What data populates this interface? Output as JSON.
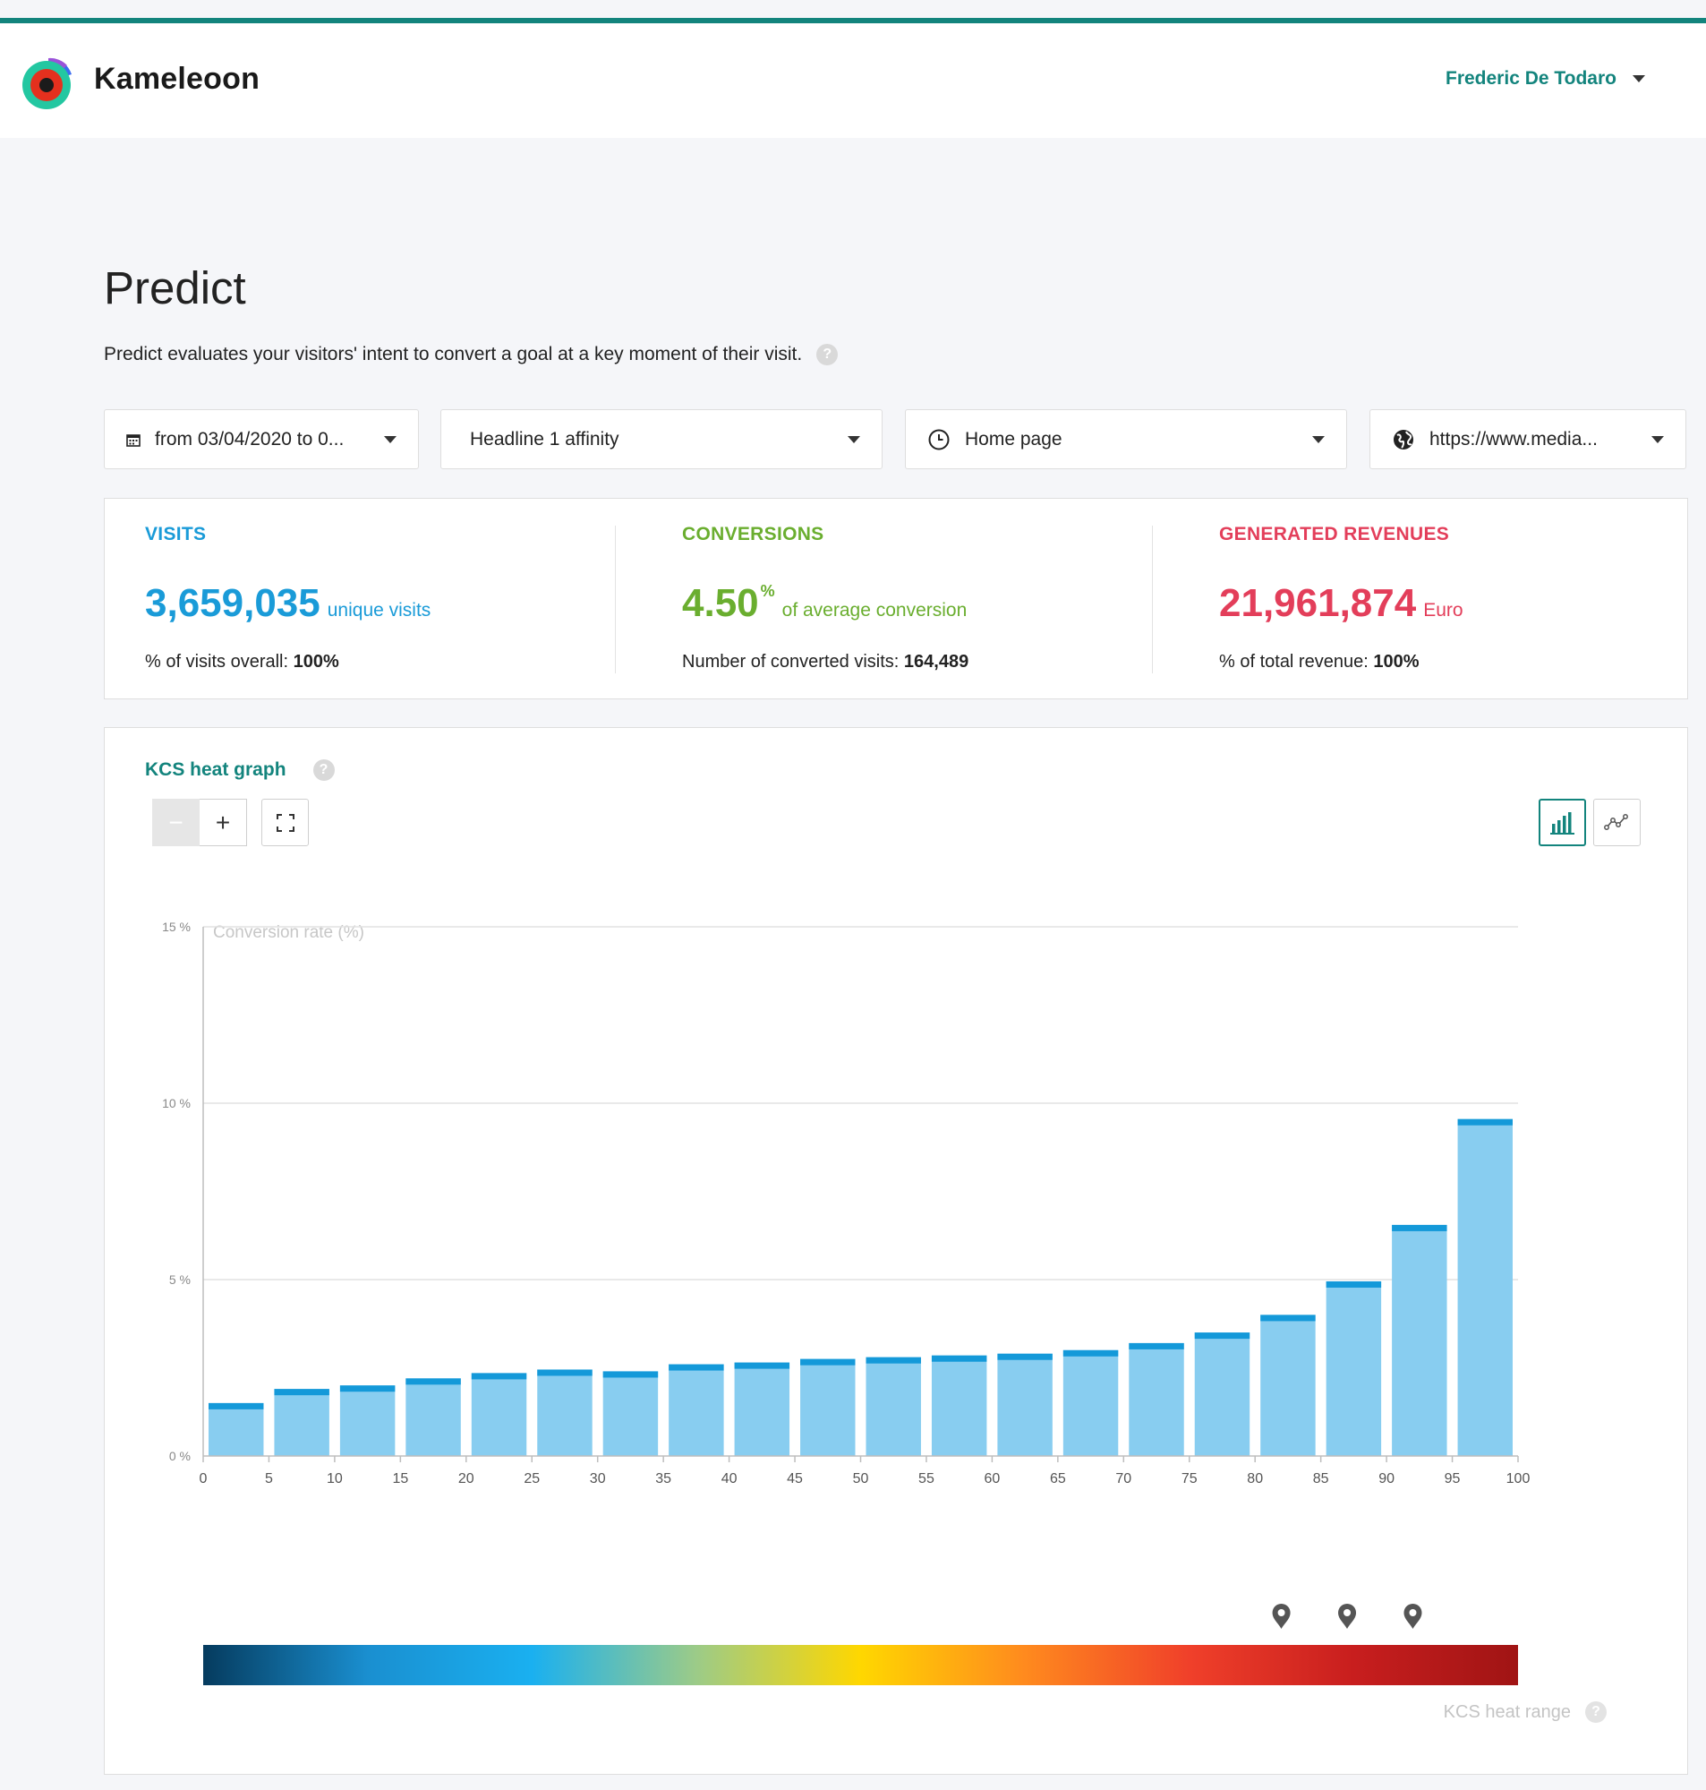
{
  "header": {
    "brand": "Kameleoon",
    "user_name": "Frederic De Todaro"
  },
  "page": {
    "title": "Predict",
    "description": "Predict evaluates your visitors' intent to convert a goal at a key moment of their visit."
  },
  "filters": {
    "date_range": "from 03/04/2020 to 0...",
    "goal": "Headline 1 affinity",
    "key_moment": "Home page",
    "site_url": "https://www.media..."
  },
  "kpis": {
    "visits": {
      "label": "VISITS",
      "value": "3,659,035",
      "unit": "unique visits",
      "sub_label": "% of visits overall:",
      "sub_value": "100%",
      "color": "#1a9bd8"
    },
    "conversions": {
      "label": "CONVERSIONS",
      "value": "4.50",
      "sup": "%",
      "unit": "of average conversion",
      "sub_label": "Number of converted visits:",
      "sub_value": "164,489",
      "color": "#6aae2f"
    },
    "revenues": {
      "label": "GENERATED REVENUES",
      "value": "21,961,874",
      "unit": "Euro",
      "sub_label": "% of total revenue:",
      "sub_value": "100%",
      "color": "#e33e5a"
    }
  },
  "chart_panel": {
    "title": "KCS heat graph",
    "zoom_out": "−",
    "zoom_in": "+",
    "heat_range_label": "KCS heat range",
    "icons": [
      "minus-icon",
      "plus-icon",
      "fit-screen-icon",
      "bar-chart-icon",
      "line-chart-icon",
      "help-icon",
      "map-pin-icon"
    ]
  },
  "chart_data": {
    "type": "bar",
    "title": "",
    "ylabel": "Conversion rate (%)",
    "xlabel": "",
    "ylim": [
      0,
      15
    ],
    "yticks": [
      "0 %",
      "5 %",
      "10 %",
      "15 %"
    ],
    "ytick_values": [
      0,
      5,
      10,
      15
    ],
    "xlim": [
      0,
      100
    ],
    "xticks": [
      0,
      5,
      10,
      15,
      20,
      25,
      30,
      35,
      40,
      45,
      50,
      55,
      60,
      65,
      70,
      75,
      80,
      85,
      90,
      95,
      100
    ],
    "bin_width": 5,
    "bin_starts": [
      0,
      5,
      10,
      15,
      20,
      25,
      30,
      35,
      40,
      45,
      50,
      55,
      60,
      65,
      70,
      75,
      80,
      85,
      90,
      95
    ],
    "values": [
      1.5,
      1.9,
      2.0,
      2.2,
      2.35,
      2.45,
      2.4,
      2.6,
      2.65,
      2.75,
      2.8,
      2.85,
      2.9,
      3.0,
      3.2,
      3.5,
      4.0,
      4.95,
      6.55,
      9.55
    ],
    "grid": true,
    "bar_color": "#88cdf0",
    "bar_cap_color": "#1499d9",
    "heat_markers": [
      82,
      87,
      92
    ],
    "heat_gradient": [
      "#053b5e",
      "#1a8fd0",
      "#1ab0f0",
      "#9ccb88",
      "#ffd700",
      "#ff8a1e",
      "#f0402a",
      "#c81e1e",
      "#a01414"
    ]
  }
}
